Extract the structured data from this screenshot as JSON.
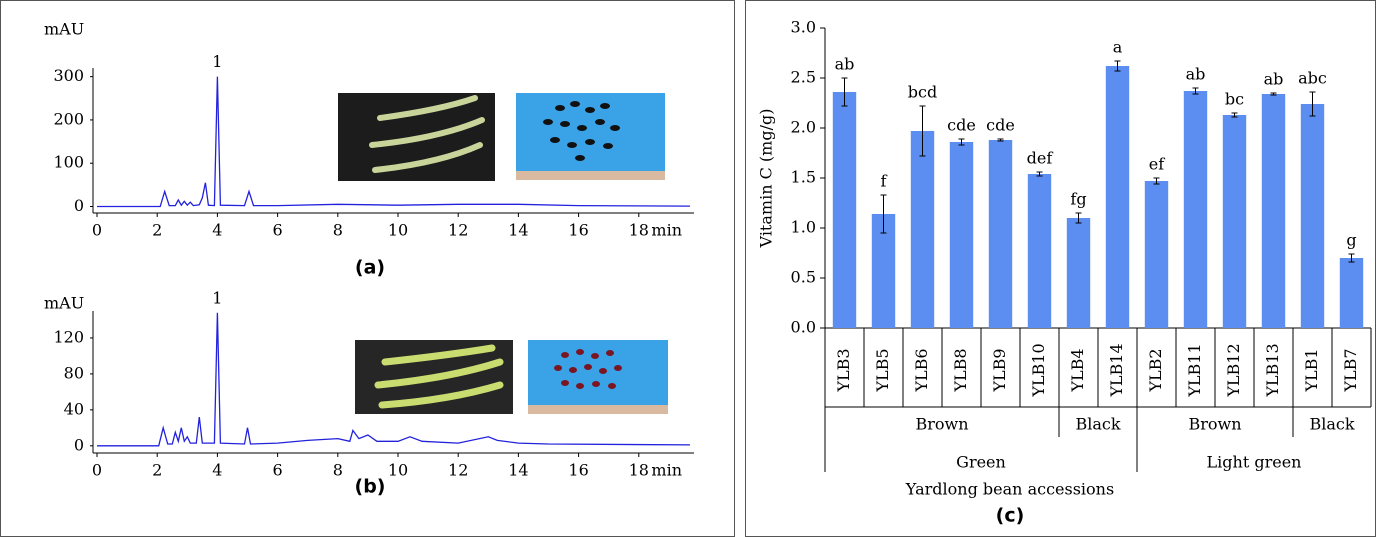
{
  "chart_data": [
    {
      "type": "line",
      "y_label": "mAU",
      "x_label": "min",
      "caption": "(a)",
      "peak_label": "1",
      "color": "#2222dd",
      "x": [
        0,
        2.1,
        2.25,
        2.4,
        2.6,
        2.7,
        2.8,
        2.9,
        3.0,
        3.1,
        3.2,
        3.4,
        3.5,
        3.6,
        3.7,
        3.9,
        4.0,
        4.1,
        4.9,
        5.05,
        5.2,
        6.0,
        8.0,
        10,
        12,
        14,
        16,
        19.7
      ],
      "values": [
        0,
        0,
        35,
        2,
        2,
        15,
        3,
        12,
        3,
        10,
        2,
        4,
        20,
        55,
        3,
        2,
        300,
        3,
        2,
        35,
        2,
        2,
        5,
        3,
        5,
        5,
        2,
        1
      ],
      "xlim": [
        0,
        20
      ],
      "xticks": [
        0,
        2,
        4,
        6,
        8,
        10,
        12,
        14,
        16,
        18
      ],
      "ylim": [
        -15,
        320
      ],
      "yticks": [
        0,
        100,
        200,
        300
      ]
    },
    {
      "type": "line",
      "y_label": "mAU",
      "x_label": "min",
      "caption": "(b)",
      "peak_label": "1",
      "color": "#2222dd",
      "x": [
        0,
        2.05,
        2.2,
        2.35,
        2.5,
        2.6,
        2.7,
        2.8,
        2.9,
        3.0,
        3.1,
        3.3,
        3.4,
        3.5,
        3.9,
        4.0,
        4.1,
        4.9,
        5.0,
        5.1,
        6.0,
        7.0,
        8.0,
        8.4,
        8.5,
        8.7,
        9.0,
        9.3,
        10.0,
        10.4,
        10.8,
        12.0,
        13.0,
        13.3,
        14.0,
        15.0,
        19.7
      ],
      "values": [
        0,
        0,
        20,
        2,
        2,
        15,
        5,
        20,
        5,
        10,
        3,
        3,
        32,
        3,
        3,
        148,
        3,
        2,
        20,
        2,
        3,
        6,
        8,
        5,
        17,
        8,
        12,
        5,
        5,
        10,
        5,
        3,
        10,
        6,
        3,
        2,
        1
      ],
      "xlim": [
        0,
        20
      ],
      "xticks": [
        0,
        2,
        4,
        6,
        8,
        10,
        12,
        14,
        16,
        18
      ],
      "ylim": [
        -8,
        150
      ],
      "yticks": [
        0,
        40,
        80,
        120
      ]
    },
    {
      "type": "bar",
      "y_label": "Vitamin C (mg/g)",
      "x_label": "Yardlong bean accessions",
      "caption": "(c)",
      "color": "#5b8ef0",
      "categories": [
        "YLB3",
        "YLB5",
        "YLB6",
        "YLB8",
        "YLB9",
        "YLB10",
        "YLB4",
        "YLB14",
        "YLB2",
        "YLB11",
        "YLB12",
        "YLB13",
        "YLB1",
        "YLB7"
      ],
      "values": [
        2.36,
        1.14,
        1.97,
        1.86,
        1.88,
        1.54,
        1.1,
        2.62,
        1.47,
        2.37,
        2.13,
        2.34,
        2.24,
        0.7
      ],
      "errors": [
        0.14,
        0.19,
        0.25,
        0.03,
        0.01,
        0.02,
        0.05,
        0.05,
        0.03,
        0.03,
        0.02,
        0.01,
        0.12,
        0.04
      ],
      "value_annotations": [
        "ab",
        "f",
        "bcd",
        "cde",
        "cde",
        "def",
        "fg",
        "a",
        "ef",
        "ab",
        "bc",
        "ab",
        "abc",
        "g"
      ],
      "groups": [
        {
          "label": "Brown",
          "count": 6
        },
        {
          "label": "Black",
          "count": 2
        },
        {
          "label": "Brown",
          "count": 4
        },
        {
          "label": "Black",
          "count": 2
        }
      ],
      "supergroups": [
        {
          "label": "Green",
          "count": 8
        },
        {
          "label": "Light green",
          "count": 6
        }
      ],
      "ylim": [
        0,
        3
      ],
      "yticks": [
        {
          "value": 0,
          "label": "0.0"
        },
        {
          "value": 0.5,
          "label": "0.5"
        },
        {
          "value": 1,
          "label": "1.0"
        },
        {
          "value": 1.5,
          "label": "1.5"
        },
        {
          "value": 2,
          "label": "2.0"
        },
        {
          "value": 2.5,
          "label": "2.5"
        },
        {
          "value": 3,
          "label": "3.0"
        }
      ]
    }
  ]
}
